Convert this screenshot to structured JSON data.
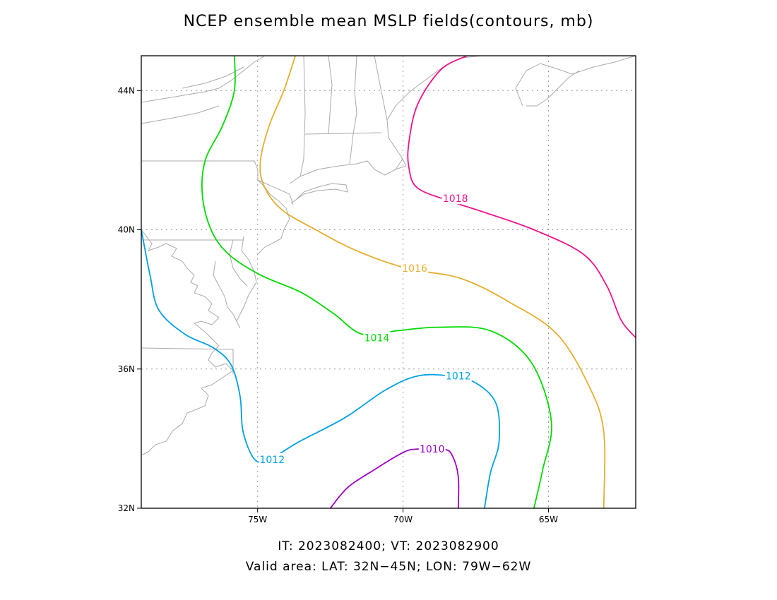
{
  "title": "NCEP ensemble mean MSLP fields(contours, mb)",
  "footer": {
    "times": "IT: 2023082400; VT: 2023082900",
    "area": "Valid area: LAT: 32N−45N; LON: 79W−62W"
  },
  "map": {
    "lon_range": [
      -79,
      -62
    ],
    "lat_range": [
      32,
      45
    ],
    "grid": "dotted",
    "x_ticks": [
      {
        "value": -75,
        "label": "75W"
      },
      {
        "value": -70,
        "label": "70W"
      },
      {
        "value": -65,
        "label": "65W"
      }
    ],
    "y_ticks": [
      {
        "value": 32,
        "label": "32N"
      },
      {
        "value": 36,
        "label": "36N"
      },
      {
        "value": 40,
        "label": "40N"
      },
      {
        "value": 44,
        "label": "44N"
      }
    ],
    "coast_color": "#aaaaaa"
  },
  "chart_data": {
    "type": "contour",
    "units": "mb",
    "contours": [
      {
        "level": 1010,
        "label": "1010",
        "color": "#a000c8",
        "points": [
          [
            -72.5,
            32
          ],
          [
            -71.9,
            32.6
          ],
          [
            -71,
            33.1
          ],
          [
            -70,
            33.6
          ],
          [
            -69.5,
            33.7
          ],
          [
            -68.6,
            33.7
          ],
          [
            -68.3,
            33.5
          ],
          [
            -68.1,
            32.9
          ],
          [
            -68.1,
            32
          ]
        ],
        "labels": [
          [
            -69,
            33.7
          ]
        ]
      },
      {
        "level": 1012,
        "label": "1012",
        "color": "#00a0e6",
        "points": [
          [
            -79,
            40
          ],
          [
            -78.7,
            38.7
          ],
          [
            -78.4,
            37.7
          ],
          [
            -77.5,
            37
          ],
          [
            -76.5,
            36.6
          ],
          [
            -75.9,
            36.1
          ],
          [
            -75.6,
            35.2
          ],
          [
            -75.5,
            34.2
          ],
          [
            -75.1,
            33.4
          ],
          [
            -74.6,
            33.4
          ],
          [
            -73.6,
            33.9
          ],
          [
            -72,
            34.6
          ],
          [
            -70.6,
            35.4
          ],
          [
            -69.5,
            35.8
          ],
          [
            -68.4,
            35.8
          ],
          [
            -67.5,
            35.6
          ],
          [
            -66.8,
            35
          ],
          [
            -66.7,
            33.9
          ],
          [
            -67,
            33
          ],
          [
            -67.2,
            32
          ]
        ],
        "labels": [
          [
            -74.5,
            33.4
          ],
          [
            -68.1,
            35.8
          ]
        ]
      },
      {
        "level": 1014,
        "label": "1014",
        "color": "#00dc00",
        "points": [
          [
            -75.8,
            45
          ],
          [
            -75.8,
            44
          ],
          [
            -76.2,
            43
          ],
          [
            -76.8,
            42
          ],
          [
            -76.9,
            41
          ],
          [
            -76.6,
            40
          ],
          [
            -76,
            39.3
          ],
          [
            -74.9,
            38.7
          ],
          [
            -73.5,
            38.2
          ],
          [
            -72.4,
            37.6
          ],
          [
            -71.4,
            37
          ],
          [
            -70.2,
            37.1
          ],
          [
            -68.8,
            37.2
          ],
          [
            -67,
            37.1
          ],
          [
            -65.6,
            36.2
          ],
          [
            -64.9,
            34.5
          ],
          [
            -65.2,
            33.1
          ],
          [
            -65.5,
            32
          ]
        ],
        "labels": [
          [
            -70.9,
            36.9
          ]
        ]
      },
      {
        "level": 1016,
        "label": "1016",
        "color": "#e6af2d",
        "points": [
          [
            -73.7,
            45
          ],
          [
            -74.1,
            44
          ],
          [
            -74.6,
            43
          ],
          [
            -74.9,
            42
          ],
          [
            -74.8,
            41.3
          ],
          [
            -74.2,
            40.6
          ],
          [
            -73,
            40
          ],
          [
            -71.6,
            39.4
          ],
          [
            -69.9,
            38.9
          ],
          [
            -68,
            38.6
          ],
          [
            -66.3,
            37.9
          ],
          [
            -64.7,
            37
          ],
          [
            -63.6,
            35.5
          ],
          [
            -63.1,
            34.2
          ],
          [
            -63.1,
            32
          ]
        ],
        "labels": [
          [
            -69.6,
            38.9
          ]
        ]
      },
      {
        "level": 1018,
        "label": "1018",
        "color": "#f0148c",
        "points": [
          [
            -67.8,
            45
          ],
          [
            -68.7,
            44.6
          ],
          [
            -69.5,
            43.6
          ],
          [
            -69.8,
            42.5
          ],
          [
            -69.8,
            41.8
          ],
          [
            -69.5,
            41.2
          ],
          [
            -68.3,
            40.8
          ],
          [
            -67.2,
            40.5
          ],
          [
            -65.5,
            40
          ],
          [
            -63.8,
            39.3
          ],
          [
            -63,
            38.4
          ],
          [
            -62.5,
            37.4
          ],
          [
            -62,
            36.9
          ]
        ],
        "labels": [
          [
            -68.2,
            40.9
          ]
        ]
      }
    ]
  }
}
